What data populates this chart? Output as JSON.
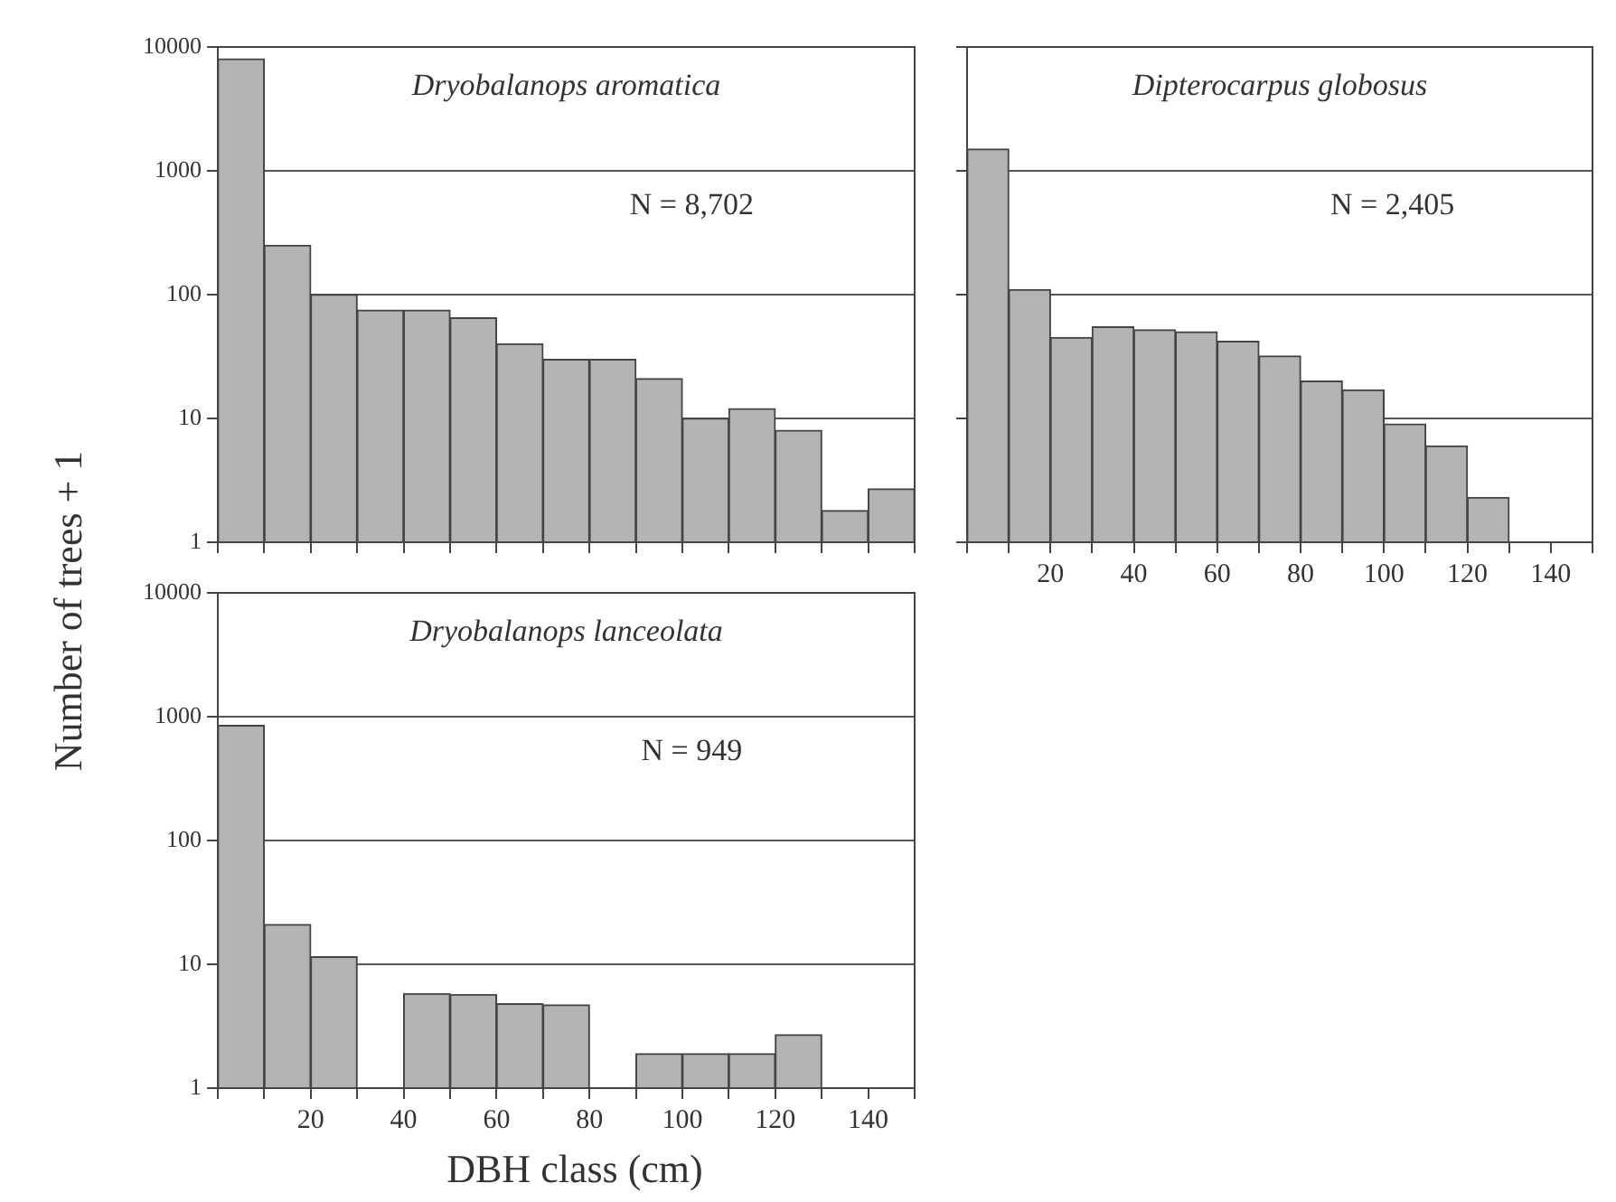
{
  "chart_data": [
    {
      "type": "histogram",
      "annotations": [
        "Dryobalanops aromatica",
        "N = 8,702"
      ],
      "ylabel": "Number of trees + 1",
      "bins": [
        0,
        10,
        20,
        30,
        40,
        50,
        60,
        70,
        80,
        90,
        100,
        110,
        120,
        130,
        140,
        150
      ],
      "values": [
        8000,
        250,
        100,
        75,
        75,
        65,
        40,
        30,
        30,
        21,
        10,
        12,
        8,
        1.8,
        2.7
      ],
      "color": "#b4b4b4",
      "log": "y",
      "ylim": [
        1,
        10000
      ],
      "yticks": [
        1,
        10,
        100,
        1000,
        10000
      ],
      "xlim": [
        0,
        150
      ],
      "xticks": [
        {
          "value": 0,
          "label": null
        },
        {
          "value": 10,
          "label": null
        },
        20,
        {
          "value": 30,
          "label": null
        },
        40,
        {
          "value": 50,
          "label": null
        },
        60,
        {
          "value": 70,
          "label": null
        },
        80,
        {
          "value": 90,
          "label": null
        },
        100,
        {
          "value": 110,
          "label": null
        },
        120,
        {
          "value": 130,
          "label": null
        },
        140,
        {
          "value": 150,
          "label": null
        }
      ],
      "grid": "y",
      "tick_labels": "y"
    },
    {
      "type": "histogram",
      "annotations": [
        "Dipterocarpus globosus",
        "N = 2,405"
      ],
      "bins": [
        0,
        10,
        20,
        30,
        40,
        50,
        60,
        70,
        80,
        90,
        100,
        110,
        120,
        130
      ],
      "values": [
        1500,
        110,
        45,
        55,
        52,
        50,
        42,
        32,
        20,
        17,
        9,
        6,
        2.3
      ],
      "color": "#b4b4b4",
      "log": "y",
      "ylim": [
        1,
        10000
      ],
      "yticks": [
        1,
        10,
        100,
        1000,
        10000
      ],
      "xlim": [
        0,
        150
      ],
      "xticks": [
        {
          "value": 0,
          "label": null
        },
        {
          "value": 10,
          "label": null
        },
        20,
        {
          "value": 30,
          "label": null
        },
        40,
        {
          "value": 50,
          "label": null
        },
        60,
        {
          "value": 70,
          "label": null
        },
        80,
        {
          "value": 90,
          "label": null
        },
        100,
        {
          "value": 110,
          "label": null
        },
        120,
        {
          "value": 130,
          "label": null
        },
        140,
        {
          "value": 150,
          "label": null
        }
      ],
      "grid": "y",
      "tick_labels": "x"
    },
    {
      "type": "histogram",
      "annotations": [
        "Dryobalanops lanceolata",
        "N = 949"
      ],
      "xlabel": "DBH class (cm)",
      "bins": [
        0,
        10,
        20,
        30,
        40,
        50,
        60,
        70,
        80,
        90,
        100,
        110,
        120,
        130
      ],
      "values": [
        850,
        21,
        11.5,
        1,
        5.8,
        5.7,
        4.8,
        4.7,
        1,
        1.9,
        1.9,
        1.9,
        2.7
      ],
      "color": "#b4b4b4",
      "log": "y",
      "ylim": [
        1,
        10000
      ],
      "yticks": [
        1,
        10,
        100,
        1000,
        10000
      ],
      "xlim": [
        0,
        150
      ],
      "xticks": [
        {
          "value": 0,
          "label": null
        },
        {
          "value": 10,
          "label": null
        },
        20,
        {
          "value": 30,
          "label": null
        },
        40,
        {
          "value": 50,
          "label": null
        },
        60,
        {
          "value": 70,
          "label": null
        },
        80,
        {
          "value": 90,
          "label": null
        },
        100,
        {
          "value": 110,
          "label": null
        },
        120,
        {
          "value": 130,
          "label": null
        },
        140,
        {
          "value": 150,
          "label": null
        }
      ],
      "grid": "y"
    }
  ]
}
